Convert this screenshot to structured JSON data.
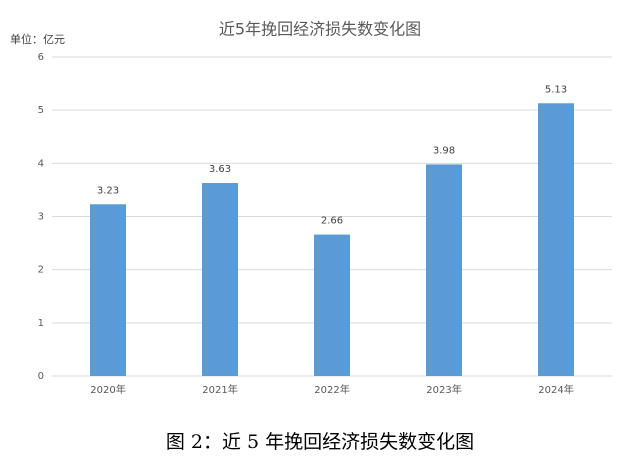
{
  "chart_data": {
    "type": "bar",
    "title": "近5年挽回经济损失数变化图",
    "y_label": "单位：亿元",
    "caption": "图 2：近 5 年挽回经济损失数变化图",
    "categories": [
      "2020年",
      "2021年",
      "2022年",
      "2023年",
      "2024年"
    ],
    "values": [
      3.23,
      3.63,
      2.66,
      3.98,
      5.13
    ],
    "color": "#5b9bd5",
    "ylim": [
      0,
      6
    ],
    "yticks": [
      0,
      1,
      2,
      3,
      4,
      5,
      6
    ],
    "grid": true
  }
}
